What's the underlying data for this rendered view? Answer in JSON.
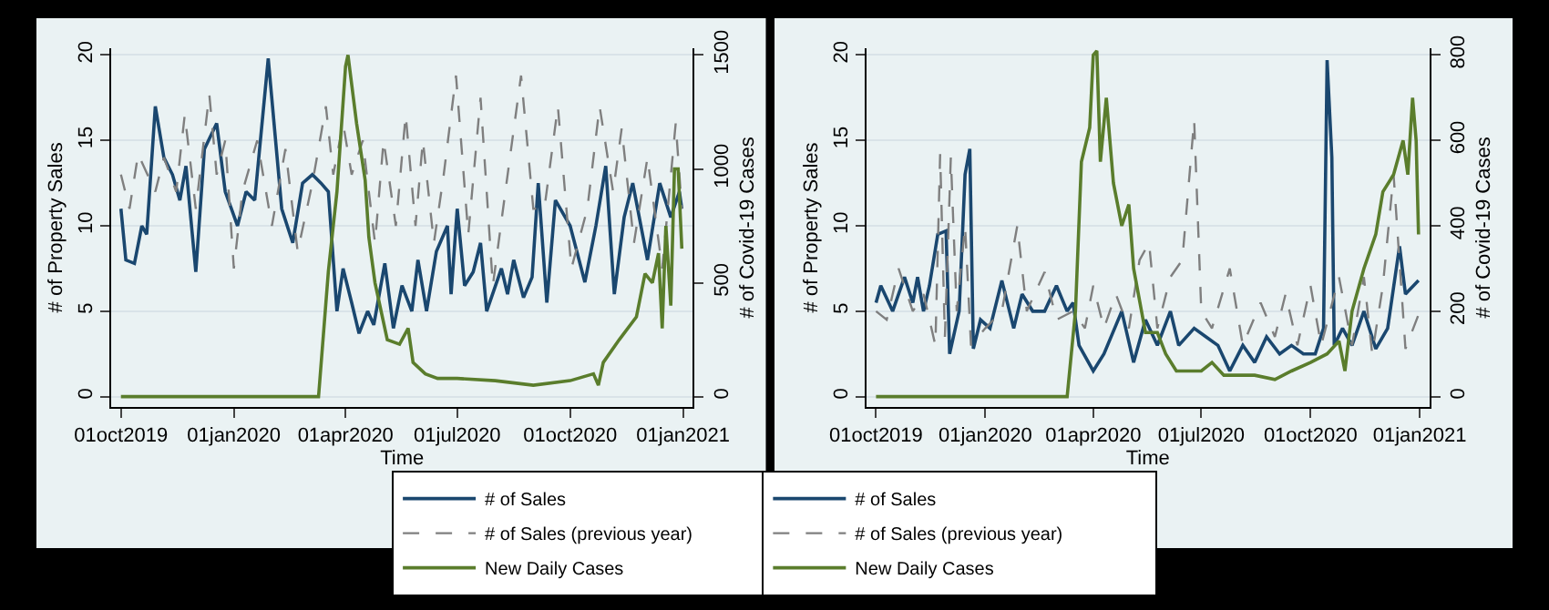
{
  "chart_data": [
    {
      "type": "line",
      "xlabel": "Time",
      "ylabel": "# of Property Sales",
      "y2label": "# of Covid-19 Cases",
      "xlim": [
        "2019-09-23",
        "2021-01-09"
      ],
      "xticks": [
        {
          "value": "2019-10-01",
          "label": "01oct2019"
        },
        {
          "value": "2020-01-01",
          "label": "01jan2020"
        },
        {
          "value": "2020-04-01",
          "label": "01apr2020"
        },
        {
          "value": "2020-07-01",
          "label": "01jul2020"
        },
        {
          "value": "2020-10-01",
          "label": "01oct2020"
        },
        {
          "value": "2021-01-01",
          "label": "01jan2021"
        }
      ],
      "ylim": [
        -0.6,
        20.4
      ],
      "yticks": [
        0,
        5,
        10,
        15,
        20
      ],
      "y2lim": [
        -45,
        1530
      ],
      "y2ticks": [
        0,
        500,
        1000,
        1500
      ],
      "grid": "y",
      "legend": "bottom",
      "series": [
        {
          "name": "# of Sales",
          "color": "#1a476f",
          "line_style": "solid",
          "x": [
            "2019-10-01",
            "2019-10-05",
            "2019-10-12",
            "2019-10-18",
            "2019-10-22",
            "2019-10-29",
            "2019-11-05",
            "2019-11-12",
            "2019-11-18",
            "2019-11-23",
            "2019-12-01",
            "2019-12-08",
            "2019-12-18",
            "2019-12-25",
            "2020-01-04",
            "2020-01-11",
            "2020-01-18",
            "2020-01-29",
            "2020-02-09",
            "2020-02-18",
            "2020-02-26",
            "2020-03-05",
            "2020-03-12",
            "2020-03-18",
            "2020-03-25",
            "2020-03-30",
            "2020-04-06",
            "2020-04-12",
            "2020-04-19",
            "2020-04-24",
            "2020-05-03",
            "2020-05-10",
            "2020-05-17",
            "2020-05-25",
            "2020-05-30",
            "2020-06-06",
            "2020-06-14",
            "2020-06-23",
            "2020-06-26",
            "2020-07-01",
            "2020-07-07",
            "2020-07-14",
            "2020-07-20",
            "2020-07-25",
            "2020-08-06",
            "2020-08-11",
            "2020-08-16",
            "2020-08-24",
            "2020-08-31",
            "2020-09-05",
            "2020-09-12",
            "2020-09-19",
            "2020-10-01",
            "2020-10-13",
            "2020-10-22",
            "2020-10-30",
            "2020-11-06",
            "2020-11-14",
            "2020-11-21",
            "2020-12-03",
            "2020-12-13",
            "2020-12-22",
            "2020-12-29",
            "2020-12-31"
          ],
          "values": [
            11,
            8,
            7.8,
            10,
            9.5,
            17,
            14,
            13,
            11.5,
            13.5,
            7.3,
            14.5,
            16,
            12,
            10,
            12,
            11.5,
            19.8,
            11,
            9,
            12.5,
            13,
            12.5,
            12,
            5,
            7.5,
            5.5,
            3.7,
            5,
            4.2,
            7.8,
            4,
            6.5,
            5,
            8,
            5,
            8.5,
            10,
            6,
            11,
            6.5,
            7.3,
            9,
            5,
            7.5,
            6,
            8,
            5.8,
            7,
            12.5,
            5.5,
            11.5,
            10,
            6.7,
            10,
            13.5,
            6,
            10.5,
            12.5,
            8,
            12.5,
            10.5,
            12,
            11
          ]
        },
        {
          "name": "# of Sales (previous year)",
          "color": "#7f7f7f",
          "line_style": "dashed",
          "x": [
            "2019-10-01",
            "2019-10-08",
            "2019-10-15",
            "2019-10-29",
            "2019-11-05",
            "2019-11-15",
            "2019-11-22",
            "2019-12-01",
            "2019-12-12",
            "2019-12-18",
            "2019-12-25",
            "2020-01-01",
            "2020-01-08",
            "2020-01-20",
            "2020-02-01",
            "2020-02-12",
            "2020-02-22",
            "2020-03-05",
            "2020-03-16",
            "2020-03-22",
            "2020-03-30",
            "2020-04-06",
            "2020-04-15",
            "2020-04-25",
            "2020-05-02",
            "2020-05-12",
            "2020-05-20",
            "2020-05-28",
            "2020-06-03",
            "2020-06-12",
            "2020-06-20",
            "2020-06-30",
            "2020-07-10",
            "2020-07-20",
            "2020-07-30",
            "2020-08-12",
            "2020-08-22",
            "2020-09-01",
            "2020-09-10",
            "2020-09-21",
            "2020-10-02",
            "2020-10-15",
            "2020-10-25",
            "2020-11-05",
            "2020-11-12",
            "2020-11-22",
            "2020-12-03",
            "2020-12-15",
            "2020-12-26",
            "2020-12-31"
          ],
          "values": [
            13,
            11,
            14.2,
            12,
            14,
            12,
            16.5,
            11,
            17.7,
            13,
            15,
            7.5,
            12,
            15,
            10,
            14.5,
            8.5,
            12.5,
            17,
            13,
            16,
            13,
            15,
            9,
            15,
            10,
            16.5,
            10,
            15,
            9,
            13,
            18.8,
            9.5,
            17.5,
            6.5,
            13.5,
            18.8,
            11,
            11,
            17,
            7.5,
            11,
            17,
            12,
            15.7,
            9,
            14,
            7.5,
            16,
            11
          ]
        },
        {
          "name": "New Daily Cases",
          "color": "#5a7d2c",
          "line_style": "solid",
          "axis": "y2",
          "x": [
            "2019-10-01",
            "2020-03-10",
            "2020-03-18",
            "2020-03-25",
            "2020-04-01",
            "2020-04-03",
            "2020-04-10",
            "2020-04-17",
            "2020-04-20",
            "2020-04-25",
            "2020-05-05",
            "2020-05-15",
            "2020-05-22",
            "2020-05-26",
            "2020-06-05",
            "2020-06-15",
            "2020-07-01",
            "2020-08-01",
            "2020-09-01",
            "2020-10-01",
            "2020-10-20",
            "2020-10-24",
            "2020-10-28",
            "2020-11-10",
            "2020-11-24",
            "2020-12-01",
            "2020-12-07",
            "2020-12-12",
            "2020-12-15",
            "2020-12-18",
            "2020-12-22",
            "2020-12-25",
            "2020-12-28",
            "2020-12-31"
          ],
          "values": [
            0,
            0,
            550,
            900,
            1450,
            1500,
            1200,
            950,
            700,
            500,
            250,
            230,
            300,
            150,
            100,
            80,
            80,
            70,
            50,
            70,
            100,
            50,
            150,
            250,
            350,
            540,
            500,
            630,
            300,
            750,
            400,
            1000,
            1000,
            650
          ]
        }
      ]
    },
    {
      "type": "line",
      "xlabel": "Time",
      "ylabel": "# of Property Sales",
      "y2label": "# of Covid-19 Cases",
      "xlim": [
        "2019-09-23",
        "2021-01-09"
      ],
      "xticks": [
        {
          "value": "2019-10-01",
          "label": "01oct2019"
        },
        {
          "value": "2020-01-01",
          "label": "01jan2020"
        },
        {
          "value": "2020-04-01",
          "label": "01apr2020"
        },
        {
          "value": "2020-07-01",
          "label": "01jul2020"
        },
        {
          "value": "2020-10-01",
          "label": "01oct2020"
        },
        {
          "value": "2021-01-01",
          "label": "01jan2021"
        }
      ],
      "ylim": [
        -0.6,
        20.4
      ],
      "yticks": [
        0,
        5,
        10,
        15,
        20
      ],
      "y2lim": [
        -24,
        816
      ],
      "y2ticks": [
        0,
        200,
        400,
        600,
        800
      ],
      "grid": "y",
      "legend": "bottom",
      "series": [
        {
          "name": "# of Sales",
          "color": "#1a476f",
          "line_style": "solid",
          "x": [
            "2019-10-01",
            "2019-10-05",
            "2019-10-15",
            "2019-10-25",
            "2019-11-01",
            "2019-11-05",
            "2019-11-10",
            "2019-11-15",
            "2019-11-22",
            "2019-11-29",
            "2019-12-02",
            "2019-12-10",
            "2019-12-15",
            "2019-12-19",
            "2019-12-22",
            "2019-12-28",
            "2020-01-05",
            "2020-01-15",
            "2020-01-25",
            "2020-02-01",
            "2020-02-10",
            "2020-02-20",
            "2020-03-01",
            "2020-03-10",
            "2020-03-15",
            "2020-03-20",
            "2020-04-01",
            "2020-04-10",
            "2020-04-25",
            "2020-05-05",
            "2020-05-15",
            "2020-05-25",
            "2020-06-05",
            "2020-06-12",
            "2020-06-25",
            "2020-07-05",
            "2020-07-15",
            "2020-07-25",
            "2020-08-05",
            "2020-08-15",
            "2020-08-25",
            "2020-09-05",
            "2020-09-15",
            "2020-09-25",
            "2020-10-05",
            "2020-10-12",
            "2020-10-15",
            "2020-10-19",
            "2020-10-21",
            "2020-10-28",
            "2020-11-05",
            "2020-11-15",
            "2020-11-25",
            "2020-12-05",
            "2020-12-15",
            "2020-12-20",
            "2020-12-31"
          ],
          "values": [
            5.5,
            6.5,
            5,
            7,
            5.5,
            7,
            5,
            6.5,
            9.5,
            9.7,
            2.5,
            5,
            13,
            14.5,
            2.8,
            4.5,
            4,
            6.8,
            4,
            6,
            5,
            5,
            6.5,
            5,
            5.5,
            3,
            1.5,
            2.5,
            5,
            2,
            4.5,
            3,
            5,
            3,
            4,
            3.5,
            3,
            1.5,
            3,
            2,
            3.5,
            2.5,
            3,
            2.5,
            2.5,
            4,
            19.7,
            14,
            3,
            4,
            3,
            5,
            2.8,
            4,
            8.8,
            6,
            6.8
          ]
        },
        {
          "name": "# of Sales (previous year)",
          "color": "#7f7f7f",
          "line_style": "dashed",
          "x": [
            "2019-10-01",
            "2019-10-10",
            "2019-10-20",
            "2019-11-01",
            "2019-11-10",
            "2019-11-20",
            "2019-11-24",
            "2019-11-28",
            "2019-12-03",
            "2019-12-08",
            "2019-12-15",
            "2019-12-20",
            "2020-01-01",
            "2020-01-15",
            "2020-01-28",
            "2020-02-05",
            "2020-02-20",
            "2020-03-01",
            "2020-03-15",
            "2020-03-25",
            "2020-04-01",
            "2020-04-10",
            "2020-04-20",
            "2020-05-01",
            "2020-05-10",
            "2020-05-18",
            "2020-05-25",
            "2020-06-05",
            "2020-06-15",
            "2020-06-25",
            "2020-07-01",
            "2020-07-10",
            "2020-07-25",
            "2020-08-05",
            "2020-08-20",
            "2020-09-01",
            "2020-09-10",
            "2020-09-20",
            "2020-10-01",
            "2020-10-10",
            "2020-10-25",
            "2020-11-05",
            "2020-11-15",
            "2020-11-22",
            "2020-12-01",
            "2020-12-10",
            "2020-12-20",
            "2020-12-31"
          ],
          "values": [
            5,
            4.5,
            7.5,
            5,
            6,
            3,
            14.2,
            3.5,
            14,
            5,
            10,
            3,
            4,
            5,
            10,
            5,
            7.3,
            4.5,
            5,
            4,
            6.5,
            4,
            6,
            4,
            8,
            9,
            4,
            7,
            8,
            16.2,
            5,
            4,
            7.5,
            3,
            5.5,
            3.5,
            6,
            3,
            6.5,
            3,
            7,
            3,
            7,
            2.5,
            6.5,
            13,
            2.8,
            4.8
          ]
        },
        {
          "name": "New Daily Cases",
          "color": "#5a7d2c",
          "line_style": "solid",
          "axis": "y2",
          "x": [
            "2019-10-01",
            "2020-03-10",
            "2020-03-17",
            "2020-03-22",
            "2020-03-29",
            "2020-04-01",
            "2020-04-04",
            "2020-04-07",
            "2020-04-12",
            "2020-04-18",
            "2020-04-25",
            "2020-05-01",
            "2020-05-05",
            "2020-05-15",
            "2020-05-25",
            "2020-06-01",
            "2020-06-10",
            "2020-06-20",
            "2020-07-01",
            "2020-07-10",
            "2020-07-20",
            "2020-08-01",
            "2020-08-15",
            "2020-09-01",
            "2020-09-15",
            "2020-10-01",
            "2020-10-15",
            "2020-10-25",
            "2020-10-30",
            "2020-11-05",
            "2020-11-15",
            "2020-11-25",
            "2020-12-01",
            "2020-12-10",
            "2020-12-18",
            "2020-12-22",
            "2020-12-26",
            "2020-12-29",
            "2020-12-31"
          ],
          "values": [
            0,
            0,
            200,
            550,
            630,
            800,
            810,
            550,
            700,
            500,
            400,
            450,
            300,
            150,
            150,
            100,
            60,
            60,
            60,
            80,
            50,
            50,
            50,
            40,
            60,
            80,
            100,
            130,
            60,
            200,
            300,
            380,
            480,
            520,
            600,
            520,
            700,
            600,
            380
          ]
        }
      ]
    }
  ]
}
